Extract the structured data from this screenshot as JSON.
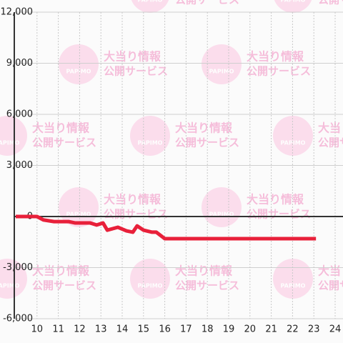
{
  "chart_data": {
    "type": "line",
    "x": [
      9,
      10,
      10.3,
      10.8,
      11.5,
      11.8,
      12.5,
      12.8,
      13.1,
      13.3,
      13.8,
      14.2,
      14.5,
      14.7,
      15.0,
      15.4,
      15.6,
      16.0,
      23.1
    ],
    "series": [
      {
        "color": "#e8203a",
        "values": [
          0,
          0,
          -200,
          -300,
          -300,
          -380,
          -380,
          -500,
          -380,
          -800,
          -630,
          -840,
          -920,
          -550,
          -800,
          -920,
          -920,
          -1300,
          -1300
        ]
      }
    ],
    "xlim": [
      9,
      24.4
    ],
    "xticks": [
      10,
      11,
      12,
      13,
      14,
      15,
      16,
      17,
      18,
      19,
      20,
      21,
      22,
      23,
      24
    ],
    "ylim": [
      -6000,
      12000
    ],
    "yticks": [
      {
        "value": -6000,
        "label": "-6,000"
      },
      {
        "value": -3000,
        "label": "-3,000"
      },
      0,
      {
        "value": 3000,
        "label": "3,000"
      },
      {
        "value": 6000,
        "label": "6,000"
      },
      {
        "value": 9000,
        "label": "9,000"
      },
      {
        "value": 12000,
        "label": "12,000"
      }
    ],
    "grid": true,
    "watermark": {
      "logo": "PAPIMO",
      "line1": "大当り情報",
      "line2": "公開サービス"
    }
  }
}
